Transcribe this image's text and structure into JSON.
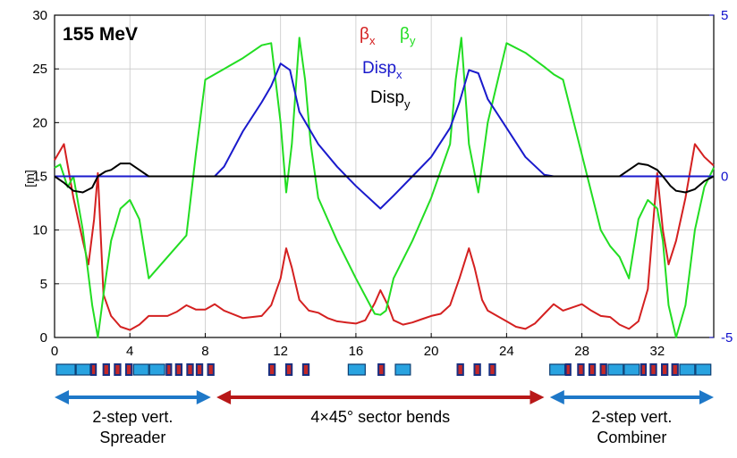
{
  "chart_data": {
    "type": "line",
    "title": "155 MeV",
    "xlabel": "",
    "ylabel": "[m]",
    "xlim": [
      0,
      35
    ],
    "ylim": [
      0,
      30
    ],
    "y2lim": [
      -5,
      5
    ],
    "grid": true,
    "legend_position": "top-center",
    "x_ticks": [
      "0",
      "4",
      "8",
      "12",
      "16",
      "20",
      "24",
      "28",
      "32"
    ],
    "y_ticks": [
      "0",
      "5",
      "10",
      "15",
      "20",
      "25",
      "30"
    ],
    "y2_ticks": [
      "5",
      "0",
      "-5"
    ],
    "series": [
      {
        "name": "βx",
        "legend_main": "β",
        "legend_sub": "x",
        "color": "#d42020",
        "axis": "left",
        "x": [
          0,
          0.5,
          1.0,
          1.5,
          1.8,
          2.1,
          2.3,
          2.6,
          3.0,
          3.5,
          4.0,
          4.5,
          5.0,
          5.5,
          6.0,
          6.5,
          7.0,
          7.5,
          8.0,
          8.5,
          9.0,
          10.0,
          11.0,
          11.5,
          12.0,
          12.3,
          12.6,
          13.0,
          13.5,
          14.0,
          14.5,
          15.0,
          15.5,
          16.0,
          16.5,
          17.0,
          17.3,
          17.7,
          18.0,
          18.5,
          19.0,
          19.5,
          20.0,
          20.5,
          21.0,
          21.5,
          22.0,
          22.3,
          22.7,
          23.0,
          23.5,
          24.0,
          24.5,
          25.0,
          25.5,
          26.0,
          26.5,
          27.0,
          27.5,
          28.0,
          28.5,
          29.0,
          29.5,
          30.0,
          30.5,
          31.0,
          31.5,
          32.0,
          32.3,
          32.6,
          33.0,
          33.5,
          34.0,
          34.5,
          35.0
        ],
        "y": [
          16.5,
          18,
          13,
          9,
          6.8,
          11,
          15.3,
          4,
          2,
          1,
          0.7,
          1.2,
          2,
          2,
          2,
          2.4,
          3,
          2.6,
          2.6,
          3.1,
          2.5,
          1.8,
          2.0,
          3.0,
          5.5,
          8.3,
          6.5,
          3.5,
          2.5,
          2.3,
          1.8,
          1.5,
          1.4,
          1.3,
          1.6,
          3.2,
          4.4,
          3.0,
          1.6,
          1.2,
          1.4,
          1.7,
          2.0,
          2.2,
          3.0,
          5.5,
          8.3,
          6.5,
          3.5,
          2.5,
          2.0,
          1.5,
          1.0,
          0.8,
          1.3,
          2.2,
          3.1,
          2.5,
          2.8,
          3.1,
          2.5,
          2.0,
          1.9,
          1.2,
          0.8,
          1.5,
          4.5,
          15.3,
          10,
          6.8,
          9,
          13,
          18,
          16.8,
          16
        ]
      },
      {
        "name": "βy",
        "legend_main": "β",
        "legend_sub": "y",
        "color": "#22dd22",
        "axis": "left",
        "x": [
          0,
          0.3,
          0.7,
          1.0,
          1.5,
          2.0,
          2.3,
          2.6,
          3.0,
          3.5,
          4.0,
          4.5,
          5.0,
          5.5,
          6.0,
          6.5,
          7.0,
          7.5,
          8.0,
          8.5,
          9.0,
          10.0,
          11.0,
          11.5,
          12.0,
          12.3,
          12.6,
          13.0,
          13.3,
          13.6,
          14.0,
          15.0,
          16.0,
          17.0,
          17.3,
          17.6,
          18.0,
          19.0,
          20.0,
          21.0,
          21.3,
          21.6,
          22.0,
          22.5,
          23.0,
          24.0,
          25.0,
          26.0,
          26.5,
          27.0,
          28.0,
          29.0,
          29.5,
          30.0,
          30.5,
          31.0,
          31.5,
          32.0,
          32.3,
          32.6,
          33.0,
          33.5,
          34.0,
          34.5,
          35.0
        ],
        "y": [
          15.8,
          16.1,
          14,
          15,
          10,
          3,
          0,
          4,
          9,
          12,
          12.8,
          11,
          5.5,
          6.5,
          7.5,
          8.5,
          9.5,
          17,
          24,
          24.5,
          25,
          26,
          27.2,
          27.4,
          20,
          13.5,
          18,
          27.9,
          24,
          18,
          13,
          9,
          5.5,
          2.2,
          2.1,
          2.5,
          5.5,
          9,
          13,
          18,
          24,
          27.9,
          18,
          13.5,
          20,
          27.4,
          26.5,
          25.2,
          24.5,
          24,
          17,
          10,
          8.5,
          7.5,
          5.5,
          11,
          12.8,
          12,
          9,
          3,
          0,
          3,
          10,
          14,
          15.8
        ]
      },
      {
        "name": "Dispx",
        "legend_main": "Disp",
        "legend_sub": "x",
        "color": "#1a1acc",
        "axis": "right",
        "x": [
          0,
          8.5,
          9.0,
          10.0,
          11.0,
          11.5,
          12.0,
          12.5,
          13.0,
          14.0,
          15.0,
          16.0,
          17.3,
          18.0,
          19.0,
          20.0,
          21.0,
          21.5,
          22.0,
          22.5,
          23.0,
          24.0,
          25.0,
          26.0,
          26.5,
          35.0
        ],
        "y": [
          0,
          0,
          0.3,
          1.4,
          2.3,
          2.8,
          3.5,
          3.3,
          2.0,
          1.0,
          0.3,
          -0.3,
          -1.0,
          -0.6,
          0,
          0.6,
          1.5,
          2.3,
          3.3,
          3.2,
          2.4,
          1.5,
          0.6,
          0.05,
          0,
          0
        ]
      },
      {
        "name": "Dispy",
        "legend_main": "Disp",
        "legend_sub": "y",
        "color": "#000000",
        "axis": "right",
        "x": [
          0,
          0.5,
          1.0,
          1.5,
          2.0,
          2.3,
          2.7,
          3.0,
          3.5,
          4.0,
          4.5,
          5.0,
          30.0,
          30.5,
          31.0,
          31.5,
          32.0,
          32.3,
          32.7,
          33.0,
          33.5,
          34.0,
          34.5,
          35.0
        ],
        "y": [
          0,
          -0.2,
          -0.45,
          -0.5,
          -0.35,
          0,
          0.15,
          0.2,
          0.4,
          0.4,
          0.2,
          0,
          0,
          0.2,
          0.4,
          0.35,
          0.2,
          0,
          -0.3,
          -0.45,
          -0.5,
          -0.4,
          -0.15,
          0
        ]
      }
    ],
    "magnet_rows": [
      [
        [
          0.0,
          1.0,
          "dipole"
        ],
        [
          1.05,
          1.8,
          "dipole"
        ],
        [
          1.85,
          2.1,
          "quad"
        ],
        [
          2.5,
          2.8,
          "quad"
        ],
        [
          3.1,
          3.4,
          "quad"
        ],
        [
          3.7,
          4.0,
          "quad"
        ],
        [
          4.1,
          4.9,
          "dipole"
        ],
        [
          4.95,
          5.75,
          "dipole"
        ],
        [
          5.85,
          6.1,
          "quad"
        ],
        [
          6.35,
          6.65,
          "quad"
        ],
        [
          6.95,
          7.25,
          "quad"
        ],
        [
          7.45,
          7.75,
          "quad"
        ],
        [
          8.05,
          8.35,
          "quad"
        ]
      ],
      [
        [
          11.3,
          11.6,
          "quad"
        ],
        [
          12.2,
          12.5,
          "quad"
        ],
        [
          13.1,
          13.4,
          "quad"
        ]
      ],
      [
        [
          15.5,
          16.4,
          "dipole"
        ],
        [
          17.1,
          17.4,
          "quad"
        ],
        [
          18.0,
          18.8,
          "dipole"
        ]
      ],
      [
        [
          21.3,
          21.6,
          "quad"
        ],
        [
          22.2,
          22.5,
          "quad"
        ],
        [
          23.0,
          23.3,
          "quad"
        ]
      ],
      [
        [
          26.2,
          27.0,
          "dipole"
        ],
        [
          27.05,
          27.3,
          "quad"
        ],
        [
          27.7,
          28.0,
          "quad"
        ],
        [
          28.3,
          28.6,
          "quad"
        ],
        [
          28.9,
          29.2,
          "quad"
        ],
        [
          29.3,
          30.1,
          "dipole"
        ],
        [
          30.15,
          30.95,
          "dipole"
        ],
        [
          31.05,
          31.3,
          "quad"
        ],
        [
          31.55,
          31.85,
          "quad"
        ],
        [
          32.15,
          32.45,
          "quad"
        ],
        [
          32.7,
          33.0,
          "quad"
        ],
        [
          33.1,
          33.9,
          "dipole"
        ],
        [
          33.95,
          34.75,
          "dipole"
        ]
      ]
    ],
    "sections": [
      {
        "line1": "2-step vert.",
        "line2": "Spreader",
        "x_from": 0,
        "x_to": 8.3,
        "color": "#1e78c8"
      },
      {
        "line1": "4×45° sector bends",
        "line2": "",
        "x_from": 8.6,
        "x_to": 26.0,
        "color": "#b81818"
      },
      {
        "line1": "2-step vert.",
        "line2": "Combiner",
        "x_from": 26.3,
        "x_to": 35,
        "color": "#1e78c8"
      }
    ]
  }
}
